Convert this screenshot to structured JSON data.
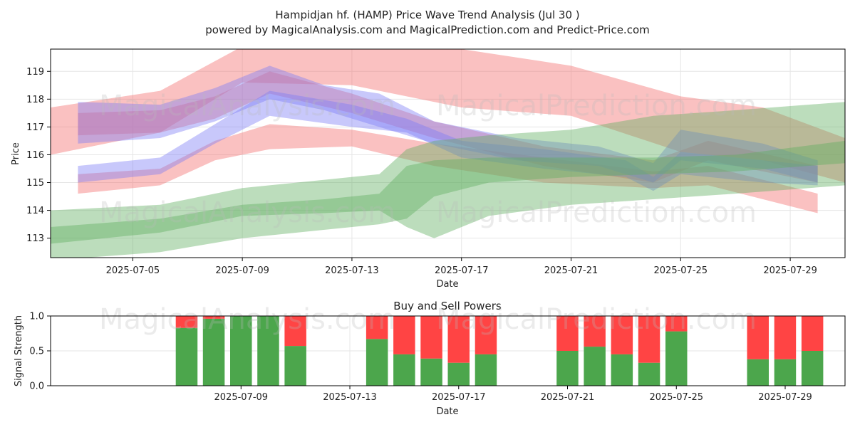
{
  "title_line1": "Hampidjan hf. (HAMP) Price Wave Trend Analysis (Jul 30 )",
  "title_line2": "powered by MagicalAnalysis.com and MagicalPrediction.com and Predict-Price.com",
  "watermarks": [
    "MagicalAnalysis.com",
    "MagicalPrediction.com"
  ],
  "colors": {
    "red_band": "#f26b6b",
    "blue_band": "#7b7bf5",
    "green_band": "#5fae5f",
    "buy": "#4ca64c",
    "sell": "#ff4444",
    "grid": "#e6e6e6",
    "axis": "#000000"
  },
  "chart_data": [
    {
      "type": "area",
      "title": "",
      "xlabel": "Date",
      "ylabel": "Price",
      "ylim": [
        112.3,
        119.8
      ],
      "xlim": [
        "2025-07-02",
        "2025-07-31"
      ],
      "yticks": [
        113,
        114,
        115,
        116,
        117,
        118,
        119
      ],
      "xticks": [
        "2025-07-05",
        "2025-07-09",
        "2025-07-13",
        "2025-07-17",
        "2025-07-21",
        "2025-07-25",
        "2025-07-29"
      ],
      "grid": true,
      "series": [
        {
          "name": "red-wave-main",
          "color": "red",
          "x": [
            "2025-07-02",
            "2025-07-06",
            "2025-07-09",
            "2025-07-13",
            "2025-07-17",
            "2025-07-21",
            "2025-07-25",
            "2025-07-28",
            "2025-07-31"
          ],
          "lower": [
            116.0,
            116.8,
            118.6,
            118.5,
            117.7,
            117.4,
            116.1,
            115.8,
            115.0
          ],
          "upper": [
            117.7,
            118.3,
            119.9,
            120.0,
            119.8,
            119.2,
            118.1,
            117.7,
            116.6
          ]
        },
        {
          "name": "red-wave-inner",
          "color": "red",
          "x": [
            "2025-07-03",
            "2025-07-06",
            "2025-07-08",
            "2025-07-10",
            "2025-07-13",
            "2025-07-16",
            "2025-07-20",
            "2025-07-24",
            "2025-07-26",
            "2025-07-30"
          ],
          "lower": [
            116.7,
            116.8,
            117.3,
            118.2,
            117.5,
            116.6,
            115.6,
            115.0,
            115.8,
            115.0
          ],
          "upper": [
            117.5,
            117.6,
            118.1,
            119.0,
            118.2,
            117.2,
            116.3,
            115.8,
            116.5,
            115.6
          ]
        },
        {
          "name": "pink-wave",
          "color": "red",
          "x": [
            "2025-07-03",
            "2025-07-06",
            "2025-07-08",
            "2025-07-10",
            "2025-07-13",
            "2025-07-16",
            "2025-07-20",
            "2025-07-24",
            "2025-07-26",
            "2025-07-30"
          ],
          "lower": [
            114.6,
            114.9,
            115.8,
            116.2,
            116.3,
            115.6,
            115.0,
            114.8,
            114.9,
            113.9
          ],
          "upper": [
            115.3,
            115.5,
            116.5,
            117.1,
            116.9,
            116.4,
            115.9,
            115.4,
            115.6,
            114.6
          ]
        },
        {
          "name": "blue-wave-main",
          "color": "blue",
          "x": [
            "2025-07-03",
            "2025-07-06",
            "2025-07-08",
            "2025-07-10",
            "2025-07-13",
            "2025-07-15",
            "2025-07-17",
            "2025-07-20",
            "2025-07-23",
            "2025-07-24",
            "2025-07-25",
            "2025-07-28",
            "2025-07-30"
          ],
          "lower": [
            115.0,
            115.3,
            116.4,
            117.4,
            117.0,
            116.8,
            115.9,
            115.5,
            115.2,
            114.7,
            115.3,
            115.0,
            114.9
          ],
          "upper": [
            115.6,
            115.9,
            117.1,
            118.3,
            117.8,
            117.3,
            116.5,
            116.2,
            115.8,
            115.2,
            116.1,
            115.8,
            115.6
          ]
        },
        {
          "name": "blue-wave-upper",
          "color": "blue",
          "x": [
            "2025-07-03",
            "2025-07-06",
            "2025-07-08",
            "2025-07-10",
            "2025-07-12",
            "2025-07-14",
            "2025-07-16",
            "2025-07-19",
            "2025-07-22",
            "2025-07-24",
            "2025-07-25",
            "2025-07-28",
            "2025-07-30"
          ],
          "lower": [
            116.4,
            116.6,
            117.2,
            118.0,
            117.6,
            117.0,
            116.4,
            115.8,
            115.6,
            115.0,
            115.8,
            115.5,
            115.0
          ],
          "upper": [
            117.9,
            117.8,
            118.4,
            119.2,
            118.5,
            118.2,
            117.2,
            116.6,
            116.3,
            115.7,
            116.9,
            116.4,
            115.8
          ]
        },
        {
          "name": "green-wave-main",
          "color": "green",
          "x": [
            "2025-07-02",
            "2025-07-06",
            "2025-07-09",
            "2025-07-12",
            "2025-07-14",
            "2025-07-15",
            "2025-07-16",
            "2025-07-18",
            "2025-07-21",
            "2025-07-24",
            "2025-07-27",
            "2025-07-31"
          ],
          "lower": [
            112.2,
            112.5,
            113.0,
            113.3,
            113.5,
            113.7,
            114.5,
            115.0,
            115.2,
            115.3,
            115.4,
            115.7
          ],
          "upper": [
            113.4,
            113.7,
            114.2,
            114.4,
            114.6,
            115.6,
            115.8,
            115.9,
            115.9,
            115.9,
            116.0,
            116.5
          ]
        },
        {
          "name": "green-wave-wide",
          "color": "green",
          "x": [
            "2025-07-02",
            "2025-07-06",
            "2025-07-09",
            "2025-07-12",
            "2025-07-14",
            "2025-07-15",
            "2025-07-16",
            "2025-07-18",
            "2025-07-21",
            "2025-07-24",
            "2025-07-27",
            "2025-07-31"
          ],
          "lower": [
            112.8,
            113.2,
            113.8,
            113.9,
            114.0,
            113.4,
            113.0,
            113.8,
            114.2,
            114.4,
            114.6,
            114.9
          ],
          "upper": [
            114.0,
            114.2,
            114.8,
            115.1,
            115.3,
            116.2,
            116.5,
            116.7,
            116.9,
            117.4,
            117.6,
            117.9
          ]
        }
      ]
    },
    {
      "type": "bar",
      "stacked": true,
      "title": "Buy and Sell Powers",
      "xlabel": "Date",
      "ylabel": "Signal Strength",
      "ylim": [
        0,
        1.0
      ],
      "yticks": [
        "0.0",
        "0.5",
        "1.0"
      ],
      "xticks": [
        "2025-07-09",
        "2025-07-13",
        "2025-07-17",
        "2025-07-21",
        "2025-07-25",
        "2025-07-29"
      ],
      "categories": [
        "2025-07-07",
        "2025-07-08",
        "2025-07-09",
        "2025-07-10",
        "2025-07-11",
        "2025-07-14",
        "2025-07-15",
        "2025-07-16",
        "2025-07-17",
        "2025-07-18",
        "2025-07-21",
        "2025-07-22",
        "2025-07-23",
        "2025-07-24",
        "2025-07-25",
        "2025-07-28",
        "2025-07-29",
        "2025-07-30"
      ],
      "series": [
        {
          "name": "Buy",
          "values": [
            0.83,
            0.96,
            1.0,
            1.0,
            0.57,
            0.67,
            0.45,
            0.39,
            0.33,
            0.45,
            0.5,
            0.56,
            0.45,
            0.33,
            0.78,
            0.38,
            0.38,
            0.5
          ]
        },
        {
          "name": "Sell",
          "values": [
            0.17,
            0.04,
            0.0,
            0.0,
            0.43,
            0.33,
            0.55,
            0.61,
            0.67,
            0.55,
            0.5,
            0.44,
            0.55,
            0.67,
            0.22,
            0.62,
            0.62,
            0.5
          ]
        }
      ]
    }
  ]
}
